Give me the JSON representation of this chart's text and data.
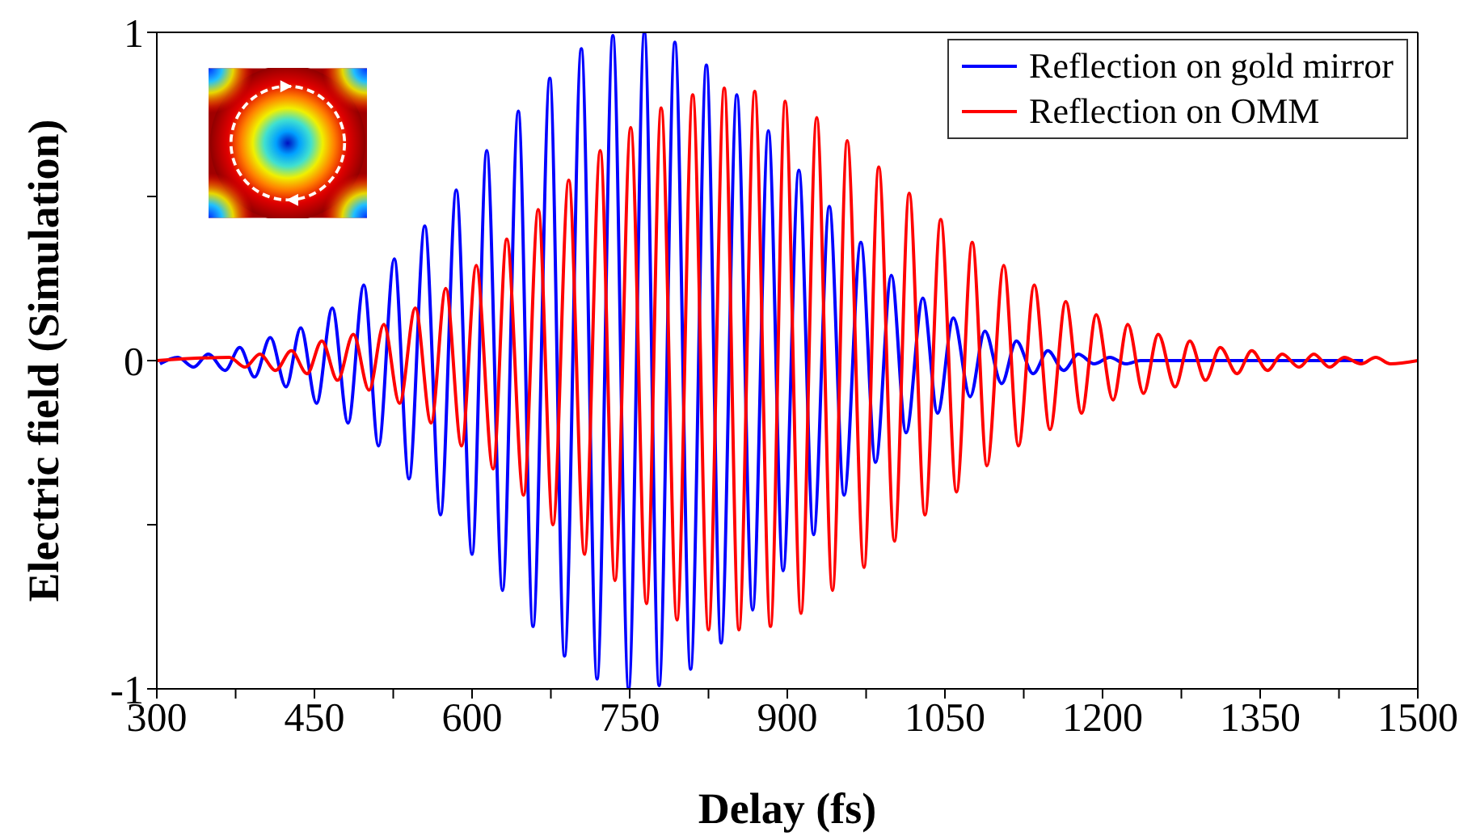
{
  "chart_data": {
    "type": "line",
    "xlabel": "Delay (fs)",
    "ylabel": "Electric field (Simulation)",
    "xlim": [
      300,
      1500
    ],
    "ylim": [
      -1,
      1
    ],
    "xticks": [
      300,
      {
        "value": 375,
        "label": null
      },
      450,
      {
        "value": 525,
        "label": null
      },
      600,
      {
        "value": 675,
        "label": null
      },
      750,
      {
        "value": 825,
        "label": null
      },
      900,
      {
        "value": 975,
        "label": null
      },
      1050,
      {
        "value": 1125,
        "label": null
      },
      1200,
      {
        "value": 1275,
        "label": null
      },
      1350,
      {
        "value": 1425,
        "label": null
      },
      1500
    ],
    "yticks": [
      -1,
      {
        "value": -0.5,
        "label": null
      },
      0,
      {
        "value": 0.5,
        "label": null
      },
      1
    ],
    "grid": false,
    "legend": "top right",
    "marker": "none",
    "line_style": "solid",
    "series": [
      {
        "name": "Reflection on gold mirror",
        "color": "#0000ff",
        "x": [
          303,
          320,
          335,
          349,
          365,
          379,
          393,
          408,
          423,
          437,
          452,
          467,
          482,
          497,
          511,
          526,
          540,
          555,
          570,
          585,
          600,
          614,
          629,
          644,
          658,
          674,
          688,
          704,
          719,
          734,
          749,
          764,
          778,
          793,
          808,
          823,
          837,
          852,
          867,
          882,
          896,
          911,
          925,
          940,
          954,
          970,
          984,
          999,
          1013,
          1029,
          1043,
          1058,
          1074,
          1088,
          1104,
          1118,
          1134,
          1148,
          1163,
          1177,
          1192,
          1207,
          1222,
          1236,
          1448
        ],
        "values": [
          -0.01,
          0.01,
          -0.02,
          0.02,
          -0.03,
          0.04,
          -0.05,
          0.07,
          -0.08,
          0.1,
          -0.13,
          0.16,
          -0.19,
          0.23,
          -0.26,
          0.31,
          -0.36,
          0.41,
          -0.47,
          0.52,
          -0.59,
          0.64,
          -0.7,
          0.76,
          -0.81,
          0.86,
          -0.9,
          0.95,
          -0.97,
          0.99,
          -1.0,
          1.0,
          -0.99,
          0.97,
          -0.94,
          0.9,
          -0.86,
          0.81,
          -0.76,
          0.7,
          -0.64,
          0.58,
          -0.53,
          0.47,
          -0.41,
          0.36,
          -0.31,
          0.26,
          -0.22,
          0.19,
          -0.16,
          0.13,
          -0.11,
          0.09,
          -0.07,
          0.06,
          -0.04,
          0.03,
          -0.03,
          0.02,
          -0.01,
          0.01,
          -0.01,
          0.0,
          0.0
        ]
      },
      {
        "name": "Reflection on OMM",
        "color": "#ff0000",
        "x": [
          300,
          369,
          384,
          398,
          413,
          428,
          443,
          457,
          472,
          487,
          502,
          516,
          531,
          546,
          561,
          575,
          590,
          604,
          620,
          633,
          649,
          663,
          677,
          692,
          707,
          722,
          736,
          751,
          766,
          780,
          795,
          810,
          825,
          840,
          854,
          869,
          884,
          898,
          913,
          928,
          943,
          957,
          973,
          987,
          1002,
          1016,
          1031,
          1046,
          1061,
          1076,
          1090,
          1106,
          1120,
          1135,
          1150,
          1165,
          1180,
          1194,
          1210,
          1224,
          1239,
          1253,
          1269,
          1283,
          1298,
          1312,
          1328,
          1342,
          1357,
          1371,
          1387,
          1401,
          1416,
          1430,
          1446,
          1460,
          1474,
          1500
        ],
        "values": [
          0,
          0.01,
          -0.02,
          0.02,
          -0.03,
          0.03,
          -0.04,
          0.06,
          -0.06,
          0.08,
          -0.09,
          0.11,
          -0.13,
          0.16,
          -0.19,
          0.22,
          -0.26,
          0.29,
          -0.33,
          0.37,
          -0.41,
          0.46,
          -0.5,
          0.55,
          -0.59,
          0.64,
          -0.67,
          0.71,
          -0.74,
          0.77,
          -0.79,
          0.81,
          -0.82,
          0.83,
          -0.82,
          0.82,
          -0.81,
          0.79,
          -0.77,
          0.74,
          -0.7,
          0.67,
          -0.63,
          0.59,
          -0.55,
          0.51,
          -0.47,
          0.43,
          -0.4,
          0.36,
          -0.32,
          0.29,
          -0.26,
          0.23,
          -0.21,
          0.18,
          -0.16,
          0.14,
          -0.12,
          0.11,
          -0.1,
          0.08,
          -0.08,
          0.06,
          -0.06,
          0.04,
          -0.04,
          0.03,
          -0.03,
          0.02,
          -0.02,
          0.02,
          -0.02,
          0.01,
          -0.01,
          0.01,
          -0.01,
          0
        ]
      }
    ]
  }
}
